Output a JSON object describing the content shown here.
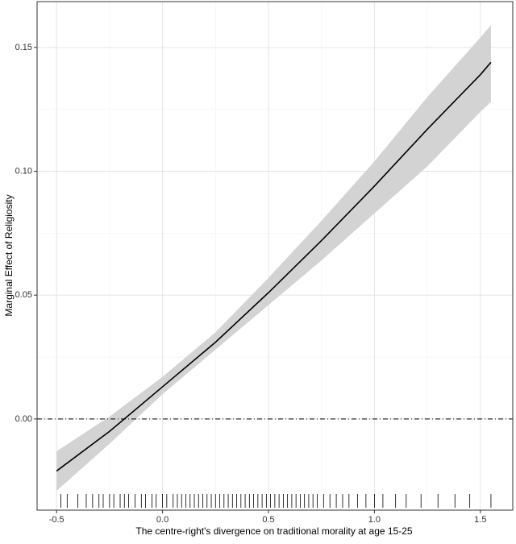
{
  "chart_data": {
    "type": "ribbon-line",
    "xlabel": "The centre-right's divergence on traditional morality at age 15-25",
    "ylabel": "Marginal Effect of Religiosity",
    "x": [
      -0.5,
      -0.25,
      0.0,
      0.25,
      0.5,
      0.75,
      1.0,
      1.25,
      1.5,
      1.55
    ],
    "values": [
      -0.021,
      -0.005,
      0.013,
      0.031,
      0.051,
      0.072,
      0.094,
      0.117,
      0.139,
      0.144
    ],
    "lower": [
      -0.029,
      -0.01,
      0.01,
      0.028,
      0.046,
      0.064,
      0.083,
      0.102,
      0.124,
      0.128
    ],
    "upper": [
      -0.013,
      0.001,
      0.017,
      0.035,
      0.057,
      0.08,
      0.104,
      0.13,
      0.154,
      0.159
    ],
    "line_color": "#000000",
    "ribbon_color": "#d3d3d3",
    "hline": 0,
    "rug": [
      -0.48,
      -0.45,
      -0.4,
      -0.36,
      -0.33,
      -0.3,
      -0.28,
      -0.25,
      -0.23,
      -0.2,
      -0.18,
      -0.16,
      -0.13,
      -0.1,
      -0.08,
      -0.05,
      -0.03,
      0.0,
      0.02,
      0.05,
      0.07,
      0.09,
      0.11,
      0.13,
      0.15,
      0.17,
      0.19,
      0.21,
      0.23,
      0.25,
      0.27,
      0.29,
      0.31,
      0.33,
      0.35,
      0.37,
      0.39,
      0.41,
      0.43,
      0.45,
      0.47,
      0.49,
      0.51,
      0.53,
      0.55,
      0.57,
      0.59,
      0.61,
      0.63,
      0.65,
      0.67,
      0.69,
      0.71,
      0.73,
      0.76,
      0.79,
      0.82,
      0.85,
      0.88,
      0.92,
      0.96,
      1.0,
      1.04,
      1.1,
      1.15,
      1.22,
      1.3,
      1.38,
      1.45,
      1.55
    ],
    "xlim": [
      -0.592,
      1.653
    ],
    "ylim": [
      -0.0368,
      0.1685
    ],
    "xticks": [
      -0.5,
      0.0,
      0.5,
      1.0,
      1.5
    ],
    "xtick_labels": [
      "-0.5",
      "0.0",
      "0.5",
      "1.0",
      "1.5"
    ],
    "yticks": [
      0,
      0.05,
      0.1,
      0.15
    ],
    "ytick_labels": [
      "0.00",
      "0.05",
      "0.10",
      "0.15"
    ],
    "x_minor_grid": [
      -0.25,
      0.25,
      0.75,
      1.25
    ],
    "y_minor_grid": [
      0.025,
      0.075,
      0.125
    ],
    "grid": true
  }
}
